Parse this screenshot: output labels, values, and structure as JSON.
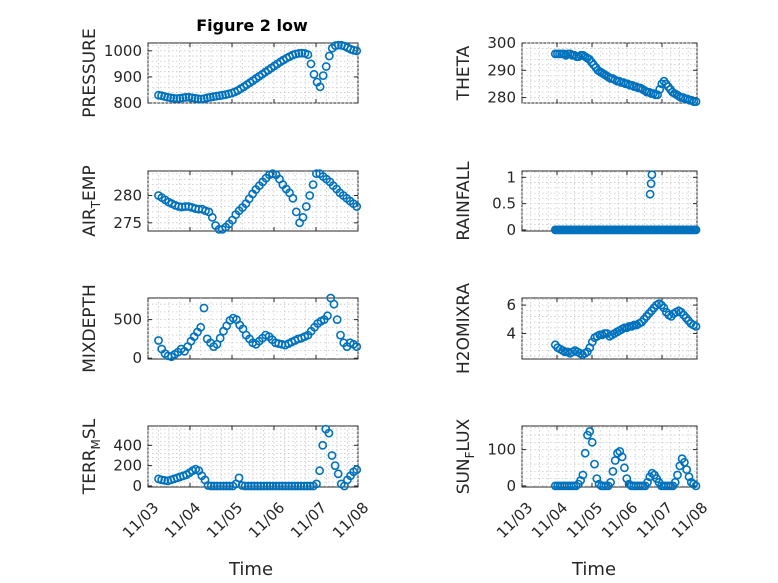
{
  "figure": {
    "title": "Figure 2 low",
    "xlabel": "Time",
    "x_tick_labels": [
      "11/03",
      "11/04",
      "11/05",
      "11/06",
      "11/07",
      "11/08"
    ]
  },
  "colors": {
    "marker": "#0072BD",
    "axis": "#262626",
    "grid": "#c8c8c8"
  },
  "chart_data": [
    {
      "type": "scatter",
      "ylabel_main": "PRESSURE",
      "ylabel_sub": "",
      "xlim": [
        0,
        5
      ],
      "ylim": [
        800,
        1030
      ],
      "yticks": [
        800,
        900,
        1000
      ],
      "x_start": 0.25,
      "x_end": 4.97,
      "y": [
        830,
        828,
        825,
        822,
        820,
        818,
        817,
        818,
        820,
        822,
        822,
        820,
        818,
        816,
        815,
        817,
        820,
        822,
        824,
        826,
        828,
        830,
        832,
        835,
        838,
        842,
        848,
        855,
        862,
        870,
        878,
        886,
        894,
        902,
        910,
        918,
        926,
        934,
        942,
        950,
        958,
        965,
        972,
        978,
        984,
        988,
        990,
        991,
        990,
        985,
        950,
        910,
        880,
        862,
        905,
        940,
        980,
        1010,
        1020,
        1022,
        1021,
        1018,
        1012,
        1006,
        1002,
        1000
      ]
    },
    {
      "type": "scatter",
      "ylabel_main": "THETA",
      "ylabel_sub": "",
      "xlim": [
        0,
        5
      ],
      "ylim": [
        278,
        300
      ],
      "yticks": [
        280,
        290,
        300
      ],
      "x_start": 0.95,
      "x_end": 4.97,
      "y": [
        296,
        296,
        296,
        296,
        296,
        295.5,
        296,
        296,
        295.5,
        295.5,
        295,
        295,
        295.5,
        295.5,
        295,
        294.5,
        294,
        293,
        292,
        291,
        290,
        289.5,
        289,
        288.5,
        288,
        287.5,
        287,
        287,
        286.5,
        286,
        286,
        285.5,
        285.5,
        285,
        285,
        284.5,
        284.5,
        284,
        284,
        283.5,
        283.5,
        283,
        282.5,
        282,
        282,
        281.5,
        281.5,
        281,
        281,
        283,
        285,
        286,
        285,
        284,
        283,
        282,
        281.5,
        281,
        280.5,
        280,
        280,
        279.5,
        279.5,
        279,
        279,
        278.5,
        278.5
      ]
    },
    {
      "type": "scatter",
      "ylabel_main": "AIR",
      "ylabel_sub": "T",
      "ylabel_rest": "EMP",
      "xlim": [
        0,
        5
      ],
      "ylim": [
        273.5,
        284.5
      ],
      "yticks": [
        275,
        280
      ],
      "x_start": 0.25,
      "x_end": 4.97,
      "y": [
        280,
        279.6,
        279.2,
        278.8,
        278.5,
        278.2,
        278,
        277.9,
        278,
        278,
        277.8,
        277.6,
        277.5,
        277.5,
        277.2,
        277,
        276,
        274.5,
        273.8,
        273.8,
        274.2,
        274.8,
        275.5,
        276.5,
        277.2,
        277.8,
        278.5,
        279.4,
        280.3,
        281.1,
        281.8,
        282.5,
        283.2,
        283.8,
        284,
        283.8,
        283,
        282,
        281.2,
        280.5,
        279.5,
        277,
        275,
        276,
        278,
        280,
        282,
        284,
        284,
        283.5,
        283,
        282.5,
        281.8,
        281.2,
        280.5,
        280,
        279.5,
        279,
        278.5,
        278
      ]
    },
    {
      "type": "scatter",
      "ylabel_main": "RAINFALL",
      "ylabel_sub": "",
      "xlim": [
        0,
        5
      ],
      "ylim": [
        -0.02,
        1.12
      ],
      "yticks": [
        0,
        0.5,
        1
      ],
      "x_start": 0.95,
      "x_end": 4.97,
      "spikes": [
        [
          3.66,
          0.68
        ],
        [
          3.69,
          0.88
        ],
        [
          3.71,
          1.05
        ]
      ],
      "y": [
        0,
        0,
        0,
        0,
        0,
        0,
        0,
        0,
        0,
        0,
        0,
        0,
        0,
        0,
        0,
        0,
        0,
        0,
        0,
        0,
        0,
        0,
        0,
        0,
        0,
        0,
        0,
        0,
        0,
        0,
        0,
        0,
        0,
        0,
        0,
        0,
        0,
        0,
        0,
        0,
        0,
        0,
        0,
        0,
        0,
        0,
        0,
        0,
        0,
        0,
        0,
        0,
        0,
        0,
        0,
        0,
        0,
        0,
        0,
        0,
        0,
        0,
        0,
        0,
        0,
        0,
        0,
        0,
        0,
        0,
        0,
        0,
        0,
        0,
        0,
        0,
        0,
        0,
        0,
        0,
        0,
        0,
        0,
        0,
        0,
        0,
        0,
        0,
        0,
        0,
        0,
        0,
        0,
        0,
        0,
        0,
        0,
        0,
        0,
        0
      ]
    },
    {
      "type": "scatter",
      "ylabel_main": "MIXDEPTH",
      "ylabel_sub": "",
      "xlim": [
        0,
        5
      ],
      "ylim": [
        -10,
        780
      ],
      "yticks": [
        0,
        500
      ],
      "x_start": 0.25,
      "x_end": 4.97,
      "y": [
        230,
        120,
        60,
        30,
        20,
        50,
        80,
        120,
        90,
        150,
        220,
        280,
        340,
        400,
        650,
        250,
        200,
        150,
        180,
        260,
        350,
        420,
        490,
        520,
        500,
        430,
        380,
        300,
        250,
        200,
        180,
        220,
        260,
        300,
        280,
        240,
        200,
        190,
        180,
        170,
        190,
        210,
        230,
        250,
        260,
        280,
        300,
        350,
        400,
        450,
        480,
        500,
        550,
        780,
        700,
        500,
        300,
        200,
        150,
        200,
        180,
        150
      ]
    },
    {
      "type": "scatter",
      "ylabel_main": "H2OMIXRA",
      "ylabel_sub": "",
      "xlim": [
        0,
        5
      ],
      "ylim": [
        2.2,
        6.5
      ],
      "yticks": [
        4,
        6
      ],
      "x_start": 0.95,
      "x_end": 4.97,
      "y": [
        3.2,
        3.0,
        2.9,
        2.8,
        2.7,
        2.7,
        2.6,
        2.7,
        2.8,
        2.7,
        2.6,
        2.5,
        2.6,
        2.7,
        3.0,
        3.4,
        3.7,
        3.8,
        3.9,
        3.9,
        4.0,
        4.0,
        3.8,
        3.9,
        4.0,
        4.1,
        4.2,
        4.3,
        4.4,
        4.4,
        4.5,
        4.5,
        4.6,
        4.6,
        4.7,
        4.8,
        5.0,
        5.2,
        5.4,
        5.6,
        5.8,
        6.0,
        6.1,
        6.0,
        5.8,
        5.5,
        5.3,
        5.2,
        5.4,
        5.5,
        5.6,
        5.5,
        5.3,
        5.1,
        4.9,
        4.7,
        4.6,
        4.5
      ]
    },
    {
      "type": "scatter",
      "ylabel_main": "TERR",
      "ylabel_sub": "M",
      "ylabel_rest": "SL",
      "xlim": [
        0,
        5
      ],
      "ylim": [
        -10,
        590
      ],
      "yticks": [
        0,
        200,
        400
      ],
      "x_start": 0.25,
      "x_end": 4.97,
      "y": [
        70,
        60,
        55,
        50,
        60,
        70,
        80,
        90,
        100,
        110,
        130,
        150,
        165,
        150,
        100,
        60,
        5,
        0,
        0,
        0,
        0,
        0,
        0,
        0,
        0,
        20,
        80,
        5,
        0,
        0,
        0,
        0,
        0,
        0,
        0,
        0,
        0,
        0,
        0,
        0,
        0,
        0,
        0,
        0,
        0,
        0,
        0,
        0,
        0,
        0,
        0,
        20,
        150,
        400,
        560,
        520,
        300,
        200,
        120,
        20,
        0,
        60,
        100,
        140,
        160
      ]
    },
    {
      "type": "scatter",
      "ylabel_main": "SUN",
      "ylabel_sub": "F",
      "ylabel_rest": "LUX",
      "xlim": [
        0,
        5
      ],
      "ylim": [
        -3,
        165
      ],
      "yticks": [
        0,
        100
      ],
      "x_start": 0.95,
      "x_end": 4.97,
      "y": [
        0,
        0,
        0,
        0,
        0,
        0,
        0,
        0,
        0,
        0,
        5,
        15,
        30,
        90,
        140,
        150,
        120,
        60,
        20,
        5,
        0,
        0,
        0,
        0,
        10,
        40,
        70,
        90,
        95,
        80,
        50,
        20,
        5,
        0,
        0,
        0,
        0,
        0,
        0,
        0,
        10,
        25,
        35,
        30,
        20,
        10,
        0,
        0,
        0,
        0,
        0,
        0,
        10,
        30,
        55,
        75,
        65,
        45,
        25,
        10,
        5,
        0
      ]
    }
  ]
}
